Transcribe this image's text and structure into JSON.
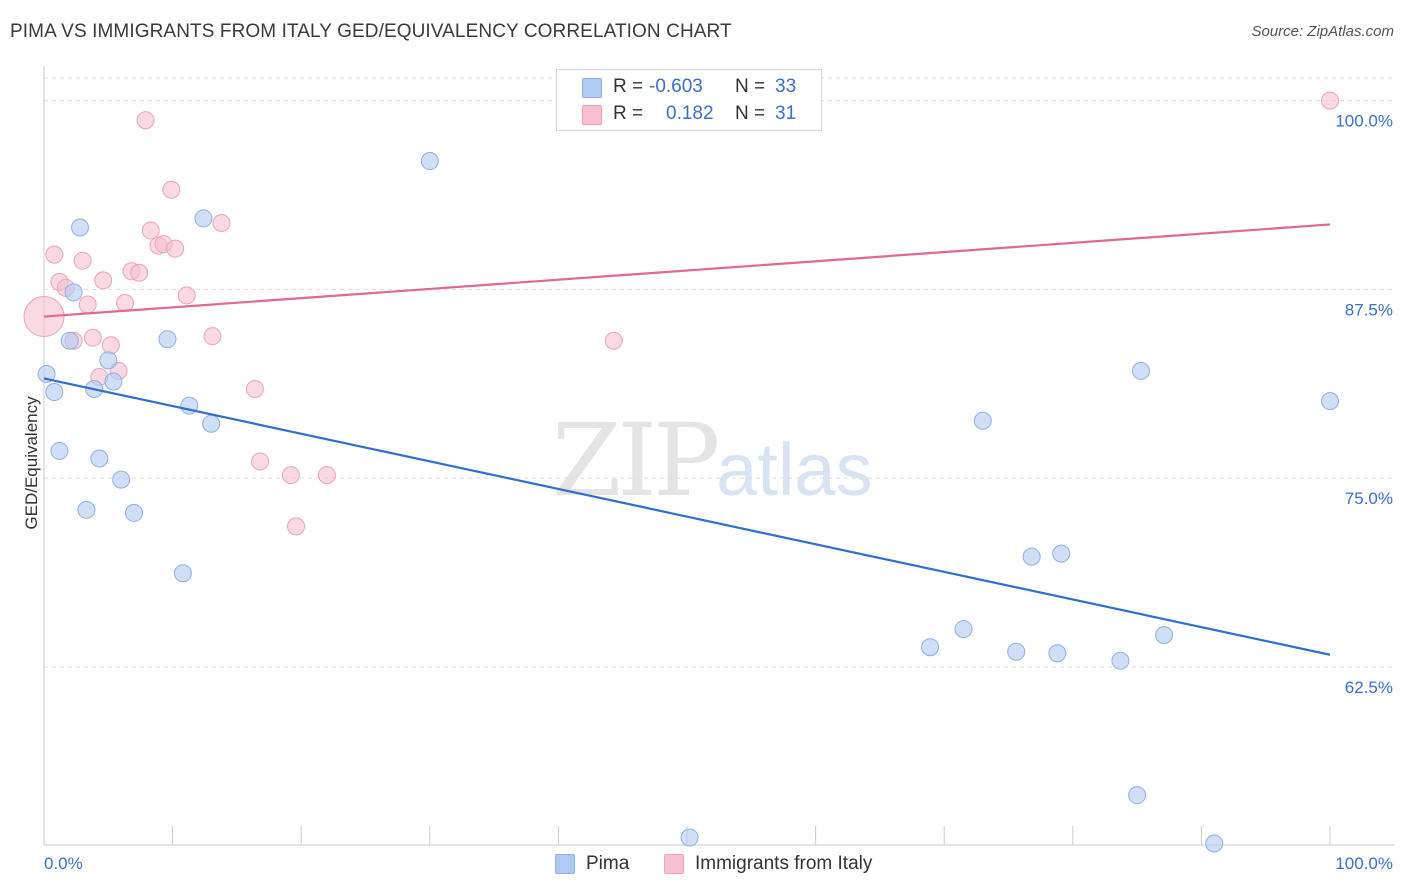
{
  "title": "PIMA VS IMMIGRANTS FROM ITALY GED/EQUIVALENCY CORRELATION CHART",
  "source": "Source: ZipAtlas.com",
  "watermark": {
    "zip": "ZIP",
    "atlas": "atlas"
  },
  "legend": {
    "rows": [
      {
        "r_label": "R =",
        "r_value": "-0.603",
        "n_label": "N =",
        "n_value": "33",
        "color": "#aec9f2"
      },
      {
        "r_label": "R =",
        "r_value": "0.182",
        "n_label": "N =",
        "n_value": "31",
        "color": "#f7bfd0"
      }
    ]
  },
  "bottom_legend": [
    "Pima",
    "Immigrants from Italy"
  ],
  "chart_data": {
    "type": "scatter",
    "title": "PIMA VS IMMIGRANTS FROM ITALY GED/EQUIVALENCY CORRELATION CHART",
    "xlabel": "",
    "ylabel": "GED/Equivalency",
    "xlim": [
      0,
      100
    ],
    "ylim": [
      50.7,
      101.5
    ],
    "x_tick_labels": [
      "0.0%",
      "100.0%"
    ],
    "y_ticks": [
      62.5,
      75.0,
      87.5,
      100.0
    ],
    "y_tick_labels": [
      "62.5%",
      "75.0%",
      "87.5%",
      "100.0%"
    ],
    "grid": true,
    "legend_position": "top-center",
    "series": [
      {
        "name": "Pima",
        "color": "#aec9f2",
        "line_color": "#2e6fcf",
        "trend": {
          "x": [
            0,
            100
          ],
          "y": [
            81.6,
            63.3
          ]
        },
        "points": [
          {
            "x": 0.2,
            "y": 81.9
          },
          {
            "x": 0.8,
            "y": 80.7
          },
          {
            "x": 1.2,
            "y": 76.8
          },
          {
            "x": 2.0,
            "y": 84.1
          },
          {
            "x": 2.3,
            "y": 87.3
          },
          {
            "x": 2.8,
            "y": 91.6
          },
          {
            "x": 3.3,
            "y": 72.9
          },
          {
            "x": 3.9,
            "y": 80.9
          },
          {
            "x": 4.3,
            "y": 76.3
          },
          {
            "x": 5.0,
            "y": 82.8
          },
          {
            "x": 5.4,
            "y": 81.4
          },
          {
            "x": 6.0,
            "y": 74.9
          },
          {
            "x": 7.0,
            "y": 72.7
          },
          {
            "x": 9.6,
            "y": 84.2
          },
          {
            "x": 10.8,
            "y": 68.7
          },
          {
            "x": 11.3,
            "y": 79.8
          },
          {
            "x": 12.4,
            "y": 92.2
          },
          {
            "x": 13.0,
            "y": 78.6
          },
          {
            "x": 30.0,
            "y": 96.0
          },
          {
            "x": 50.2,
            "y": 51.2
          },
          {
            "x": 68.9,
            "y": 63.8
          },
          {
            "x": 71.5,
            "y": 65.0
          },
          {
            "x": 73.0,
            "y": 78.8
          },
          {
            "x": 75.6,
            "y": 63.5
          },
          {
            "x": 76.8,
            "y": 69.8
          },
          {
            "x": 78.8,
            "y": 63.4
          },
          {
            "x": 79.1,
            "y": 70.0
          },
          {
            "x": 83.7,
            "y": 62.9
          },
          {
            "x": 85.3,
            "y": 82.1
          },
          {
            "x": 85.0,
            "y": 54.0
          },
          {
            "x": 87.1,
            "y": 64.6
          },
          {
            "x": 91.0,
            "y": 50.8
          },
          {
            "x": 100.0,
            "y": 80.1
          }
        ]
      },
      {
        "name": "Immigrants from Italy",
        "color": "#f7bfd0",
        "line_color": "#e06892",
        "trend": {
          "x": [
            0,
            100
          ],
          "y": [
            85.7,
            91.8
          ]
        },
        "points": [
          {
            "x": 0.0,
            "y": 85.7,
            "big": true
          },
          {
            "x": 0.8,
            "y": 89.8
          },
          {
            "x": 1.2,
            "y": 88.0
          },
          {
            "x": 1.7,
            "y": 87.6
          },
          {
            "x": 2.3,
            "y": 84.1
          },
          {
            "x": 3.0,
            "y": 89.4
          },
          {
            "x": 3.4,
            "y": 86.5
          },
          {
            "x": 3.8,
            "y": 84.3
          },
          {
            "x": 4.3,
            "y": 81.7
          },
          {
            "x": 4.6,
            "y": 88.1
          },
          {
            "x": 5.2,
            "y": 83.8
          },
          {
            "x": 5.8,
            "y": 82.1
          },
          {
            "x": 6.3,
            "y": 86.6
          },
          {
            "x": 6.8,
            "y": 88.7
          },
          {
            "x": 7.4,
            "y": 88.6
          },
          {
            "x": 7.9,
            "y": 98.7
          },
          {
            "x": 8.3,
            "y": 91.4
          },
          {
            "x": 8.9,
            "y": 90.4
          },
          {
            "x": 9.3,
            "y": 90.5
          },
          {
            "x": 9.9,
            "y": 94.1
          },
          {
            "x": 10.2,
            "y": 90.2
          },
          {
            "x": 11.1,
            "y": 87.1
          },
          {
            "x": 13.1,
            "y": 84.4
          },
          {
            "x": 13.8,
            "y": 91.9
          },
          {
            "x": 16.4,
            "y": 80.9
          },
          {
            "x": 16.8,
            "y": 76.1
          },
          {
            "x": 19.2,
            "y": 75.2
          },
          {
            "x": 19.6,
            "y": 71.8
          },
          {
            "x": 22.0,
            "y": 75.2
          },
          {
            "x": 44.3,
            "y": 84.1
          },
          {
            "x": 100.0,
            "y": 100.0
          }
        ]
      }
    ]
  }
}
